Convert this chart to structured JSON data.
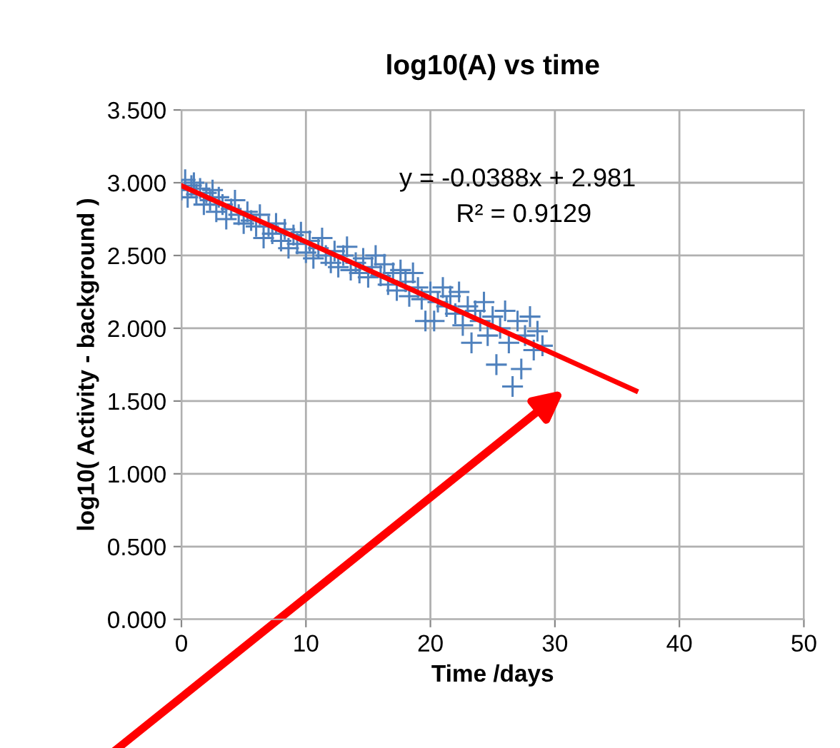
{
  "chart_data": {
    "type": "scatter",
    "title": "log10(A) vs time",
    "xlabel": "Time /days",
    "ylabel": "log10( Activity - background )",
    "series": [
      {
        "color": "#4f81bd",
        "marker": "cross",
        "x": [
          0,
          0.3,
          0.5,
          0.8,
          1,
          1.2,
          1.5,
          1.8,
          2,
          2.3,
          2.5,
          2.8,
          3,
          3.3,
          3.6,
          4,
          4.3,
          4.6,
          5,
          5.3,
          5.6,
          6,
          6.3,
          6.6,
          7,
          7.3,
          7.6,
          8,
          8.3,
          8.6,
          9,
          9.3,
          9.6,
          10,
          10.3,
          10.6,
          11,
          11.3,
          11.6,
          12,
          12.3,
          12.6,
          13,
          13.3,
          13.6,
          14,
          14.3,
          14.6,
          15,
          15.3,
          15.6,
          16,
          16.3,
          16.6,
          17,
          17.3,
          17.6,
          18,
          18.3,
          18.6,
          19,
          19.3,
          19.6,
          20,
          20.3,
          20.6,
          21,
          21.3,
          21.6,
          22,
          22.3,
          22.6,
          23,
          23.3,
          23.6,
          24,
          24.3,
          24.6,
          25,
          25.3,
          25.6,
          26,
          26.3,
          26.6,
          27,
          27.3,
          27.6,
          28,
          28.3,
          28.6,
          29
        ],
        "values": [
          2.95,
          3.02,
          2.9,
          2.98,
          3.0,
          2.92,
          2.96,
          2.85,
          2.93,
          2.88,
          2.95,
          2.8,
          2.9,
          2.85,
          2.75,
          2.82,
          2.88,
          2.78,
          2.72,
          2.8,
          2.74,
          2.7,
          2.78,
          2.62,
          2.7,
          2.65,
          2.72,
          2.6,
          2.68,
          2.55,
          2.64,
          2.58,
          2.66,
          2.52,
          2.6,
          2.48,
          2.55,
          2.62,
          2.5,
          2.45,
          2.53,
          2.42,
          2.5,
          2.56,
          2.4,
          2.45,
          2.38,
          2.48,
          2.35,
          2.42,
          2.5,
          2.36,
          2.44,
          2.3,
          2.38,
          2.26,
          2.4,
          2.32,
          2.22,
          2.38,
          2.28,
          2.2,
          2.05,
          2.25,
          2.05,
          2.18,
          2.28,
          2.15,
          2.22,
          2.1,
          2.25,
          2.02,
          2.15,
          1.9,
          2.12,
          2.05,
          2.18,
          1.95,
          2.08,
          1.75,
          2.0,
          2.12,
          1.9,
          1.6,
          2.05,
          1.72,
          1.95,
          2.08,
          1.85,
          1.98,
          1.88
        ]
      },
      {
        "type": "line",
        "color": "#ff0000",
        "marker": "none",
        "line_style": "solid",
        "x": [
          0,
          36.5
        ],
        "values": [
          2.98,
          1.57
        ]
      }
    ],
    "annotations": [
      "y = -0.0388x + 2.981",
      "R² = 0.9129"
    ],
    "xlim": [
      0,
      50
    ],
    "xticks": [
      0,
      10,
      20,
      30,
      40,
      50
    ],
    "ylim": [
      0,
      3.5
    ],
    "yticks": [
      {
        "value": 0,
        "label": "0.000"
      },
      {
        "value": 0.5,
        "label": "0.500"
      },
      {
        "value": 1,
        "label": "1.000"
      },
      {
        "value": 1.5,
        "label": "1.500"
      },
      {
        "value": 2,
        "label": "2.000"
      },
      {
        "value": 2.5,
        "label": "2.500"
      },
      {
        "value": 3,
        "label": "3.000"
      },
      {
        "value": 3.5,
        "label": "3.500"
      }
    ],
    "grid": true,
    "legend": false
  }
}
